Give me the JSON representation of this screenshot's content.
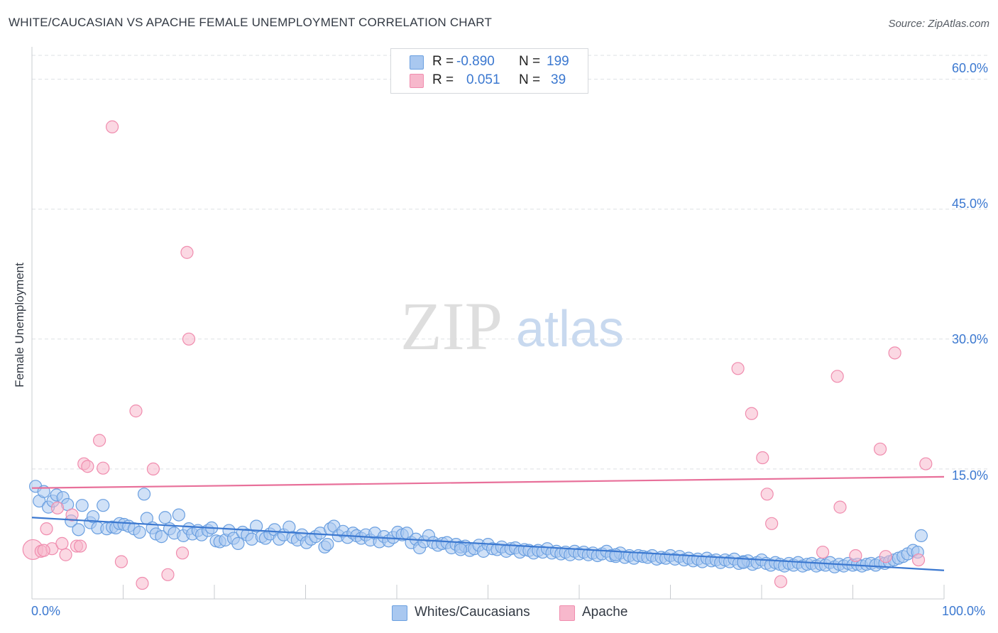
{
  "title": "WHITE/CAUCASIAN VS APACHE FEMALE UNEMPLOYMENT CORRELATION CHART",
  "source": "Source: ZipAtlas.com",
  "watermark": {
    "zip": "ZIP",
    "atlas": "atlas"
  },
  "colors": {
    "blue": "#3b78d0",
    "blue_fill": "#a9c8f0",
    "blue_stroke": "#6a9fe0",
    "pink": "#e8709a",
    "pink_fill": "#f7b8cc",
    "pink_stroke": "#f08cae",
    "grid": "#dde0e4"
  },
  "legend": {
    "rows": [
      {
        "r_label": "R =",
        "r_value": "-0.890",
        "n_label": "N =",
        "n_value": "199"
      },
      {
        "r_label": "R =",
        "r_value": "0.051",
        "n_label": "N =",
        "n_value": "39"
      }
    ]
  },
  "bottom_legend": {
    "series1": "Whites/Caucasians",
    "series2": "Apache"
  },
  "chart_data": {
    "type": "scatter",
    "title": "WHITE/CAUCASIAN VS APACHE FEMALE UNEMPLOYMENT CORRELATION CHART",
    "xlabel": "",
    "ylabel": "Female Unemployment",
    "xlim": [
      0,
      100
    ],
    "ylim": [
      0,
      63
    ],
    "x_tick_labels": {
      "min": "0.0%",
      "max": "100.0%"
    },
    "y_ticks": [
      {
        "value": 15,
        "label": "15.0%"
      },
      {
        "value": 30,
        "label": "30.0%"
      },
      {
        "value": 45,
        "label": "45.0%"
      },
      {
        "value": 60,
        "label": "60.0%"
      }
    ],
    "x_tick_marks": [
      0,
      10,
      20,
      30,
      40,
      50,
      60,
      70,
      80,
      90,
      100
    ],
    "series": [
      {
        "name": "Whites/Caucasians",
        "color": "#3b78d0",
        "trend": {
          "x": [
            0,
            100
          ],
          "y": [
            9.4,
            3.3
          ]
        },
        "points": [
          [
            0.4,
            13.0
          ],
          [
            0.8,
            11.3
          ],
          [
            1.3,
            12.4
          ],
          [
            1.8,
            10.6
          ],
          [
            2.3,
            11.3
          ],
          [
            2.7,
            12.0
          ],
          [
            3.4,
            11.7
          ],
          [
            3.9,
            10.9
          ],
          [
            4.3,
            9.0
          ],
          [
            5.1,
            8.0
          ],
          [
            5.5,
            10.8
          ],
          [
            6.4,
            8.8
          ],
          [
            6.7,
            9.5
          ],
          [
            7.2,
            8.2
          ],
          [
            7.8,
            10.8
          ],
          [
            8.2,
            8.1
          ],
          [
            8.8,
            8.3
          ],
          [
            9.2,
            8.2
          ],
          [
            9.6,
            8.7
          ],
          [
            10.1,
            8.6
          ],
          [
            10.6,
            8.4
          ],
          [
            11.2,
            8.1
          ],
          [
            11.8,
            7.7
          ],
          [
            12.3,
            12.1
          ],
          [
            12.6,
            9.3
          ],
          [
            13.2,
            8.2
          ],
          [
            13.6,
            7.5
          ],
          [
            14.2,
            7.2
          ],
          [
            14.6,
            9.4
          ],
          [
            15.1,
            8.1
          ],
          [
            15.6,
            7.6
          ],
          [
            16.1,
            9.7
          ],
          [
            16.6,
            7.3
          ],
          [
            17.2,
            8.1
          ],
          [
            17.6,
            7.5
          ],
          [
            18.2,
            7.9
          ],
          [
            18.6,
            7.4
          ],
          [
            19.3,
            7.9
          ],
          [
            19.7,
            8.2
          ],
          [
            20.2,
            6.7
          ],
          [
            20.6,
            6.6
          ],
          [
            21.2,
            6.8
          ],
          [
            21.6,
            7.9
          ],
          [
            22.1,
            7.0
          ],
          [
            22.6,
            6.4
          ],
          [
            23.1,
            7.7
          ],
          [
            23.6,
            7.4
          ],
          [
            24.1,
            6.9
          ],
          [
            24.6,
            8.4
          ],
          [
            25.2,
            7.2
          ],
          [
            25.6,
            7.0
          ],
          [
            26.1,
            7.5
          ],
          [
            26.6,
            8.0
          ],
          [
            27.1,
            6.9
          ],
          [
            27.6,
            7.4
          ],
          [
            28.2,
            8.3
          ],
          [
            28.6,
            7.1
          ],
          [
            29.1,
            6.8
          ],
          [
            29.6,
            7.4
          ],
          [
            30.1,
            6.5
          ],
          [
            30.6,
            6.9
          ],
          [
            31.1,
            7.2
          ],
          [
            31.6,
            7.6
          ],
          [
            32.1,
            6.0
          ],
          [
            32.4,
            6.3
          ],
          [
            32.7,
            8.1
          ],
          [
            33.1,
            8.4
          ],
          [
            33.6,
            7.3
          ],
          [
            34.1,
            7.8
          ],
          [
            34.6,
            7.1
          ],
          [
            35.2,
            7.6
          ],
          [
            35.6,
            7.3
          ],
          [
            36.1,
            7.0
          ],
          [
            36.6,
            7.4
          ],
          [
            37.1,
            6.8
          ],
          [
            37.6,
            7.6
          ],
          [
            38.1,
            6.6
          ],
          [
            38.6,
            7.2
          ],
          [
            39.1,
            6.7
          ],
          [
            39.6,
            7.1
          ],
          [
            40.1,
            7.7
          ],
          [
            40.6,
            7.4
          ],
          [
            41.1,
            7.6
          ],
          [
            41.6,
            6.5
          ],
          [
            42.1,
            6.9
          ],
          [
            42.5,
            5.9
          ],
          [
            43.0,
            6.6
          ],
          [
            43.5,
            7.3
          ],
          [
            44.0,
            6.5
          ],
          [
            44.5,
            6.2
          ],
          [
            45.0,
            6.4
          ],
          [
            45.5,
            6.5
          ],
          [
            46.0,
            5.9
          ],
          [
            46.5,
            6.3
          ],
          [
            47.0,
            6.0
          ],
          [
            47.5,
            6.1
          ],
          [
            48.0,
            5.6
          ],
          [
            48.5,
            5.8
          ],
          [
            49.0,
            6.2
          ],
          [
            49.5,
            5.5
          ],
          [
            50.0,
            6.3
          ],
          [
            50.5,
            5.8
          ],
          [
            51.0,
            5.7
          ],
          [
            51.5,
            6.0
          ],
          [
            52.0,
            5.5
          ],
          [
            52.5,
            5.8
          ],
          [
            53.0,
            5.9
          ],
          [
            53.5,
            5.4
          ],
          [
            54.0,
            5.7
          ],
          [
            54.5,
            5.6
          ],
          [
            55.0,
            5.3
          ],
          [
            55.5,
            5.6
          ],
          [
            56.0,
            5.4
          ],
          [
            56.5,
            5.8
          ],
          [
            57.0,
            5.3
          ],
          [
            57.5,
            5.5
          ],
          [
            58.0,
            5.2
          ],
          [
            58.5,
            5.4
          ],
          [
            59.0,
            5.1
          ],
          [
            59.5,
            5.5
          ],
          [
            60.0,
            5.2
          ],
          [
            60.5,
            5.4
          ],
          [
            61.0,
            5.1
          ],
          [
            61.5,
            5.3
          ],
          [
            62.0,
            5.0
          ],
          [
            62.5,
            5.2
          ],
          [
            63.0,
            5.5
          ],
          [
            63.5,
            5.0
          ],
          [
            64.0,
            4.9
          ],
          [
            64.5,
            5.3
          ],
          [
            65.0,
            4.8
          ],
          [
            65.5,
            5.0
          ],
          [
            66.0,
            4.7
          ],
          [
            66.5,
            5.0
          ],
          [
            67.0,
            4.9
          ],
          [
            67.5,
            4.8
          ],
          [
            68.0,
            5.0
          ],
          [
            68.5,
            4.6
          ],
          [
            69.0,
            4.8
          ],
          [
            69.5,
            4.7
          ],
          [
            70.0,
            5.0
          ],
          [
            70.5,
            4.6
          ],
          [
            71.0,
            4.9
          ],
          [
            71.5,
            4.5
          ],
          [
            72.0,
            4.7
          ],
          [
            72.5,
            4.4
          ],
          [
            73.0,
            4.6
          ],
          [
            73.5,
            4.3
          ],
          [
            74.0,
            4.7
          ],
          [
            74.5,
            4.4
          ],
          [
            75.0,
            4.5
          ],
          [
            75.5,
            4.2
          ],
          [
            76.0,
            4.5
          ],
          [
            76.5,
            4.3
          ],
          [
            77.0,
            4.6
          ],
          [
            77.5,
            4.1
          ],
          [
            78.0,
            4.3
          ],
          [
            78.5,
            4.4
          ],
          [
            79.0,
            4.0
          ],
          [
            79.5,
            4.2
          ],
          [
            80.0,
            4.5
          ],
          [
            80.5,
            4.1
          ],
          [
            81.0,
            3.9
          ],
          [
            81.5,
            4.2
          ],
          [
            82.0,
            4.0
          ],
          [
            82.5,
            3.8
          ],
          [
            83.0,
            4.1
          ],
          [
            83.5,
            3.9
          ],
          [
            84.0,
            4.2
          ],
          [
            84.5,
            3.8
          ],
          [
            85.0,
            4.0
          ],
          [
            85.5,
            4.1
          ],
          [
            86.0,
            3.8
          ],
          [
            86.5,
            4.0
          ],
          [
            87.0,
            3.9
          ],
          [
            87.5,
            4.2
          ],
          [
            88.0,
            3.7
          ],
          [
            88.5,
            4.0
          ],
          [
            89.0,
            3.8
          ],
          [
            89.5,
            4.1
          ],
          [
            90.0,
            3.9
          ],
          [
            90.5,
            4.0
          ],
          [
            91.0,
            3.8
          ],
          [
            91.5,
            4.0
          ],
          [
            92.0,
            4.1
          ],
          [
            92.5,
            3.9
          ],
          [
            93.0,
            4.2
          ],
          [
            93.5,
            4.1
          ],
          [
            94.0,
            4.3
          ],
          [
            94.5,
            4.5
          ],
          [
            95.0,
            4.7
          ],
          [
            95.5,
            4.9
          ],
          [
            96.0,
            5.2
          ],
          [
            96.6,
            5.6
          ],
          [
            97.1,
            5.4
          ],
          [
            97.5,
            7.3
          ],
          [
            47.0,
            5.7
          ],
          [
            64.0,
            5.1
          ],
          [
            78.0,
            4.2
          ]
        ]
      },
      {
        "name": "Apache",
        "color": "#e8709a",
        "trend": {
          "x": [
            0,
            100
          ],
          "y": [
            12.8,
            14.1
          ]
        },
        "points": [
          [
            0.1,
            5.7
          ],
          [
            1.0,
            5.5
          ],
          [
            1.6,
            8.1
          ],
          [
            2.2,
            5.8
          ],
          [
            2.8,
            10.5
          ],
          [
            3.3,
            6.4
          ],
          [
            3.7,
            5.1
          ],
          [
            4.4,
            9.7
          ],
          [
            4.9,
            6.1
          ],
          [
            5.3,
            6.1
          ],
          [
            5.7,
            15.6
          ],
          [
            6.1,
            15.3
          ],
          [
            7.4,
            18.3
          ],
          [
            7.8,
            15.1
          ],
          [
            8.8,
            54.5
          ],
          [
            9.8,
            4.3
          ],
          [
            11.4,
            21.7
          ],
          [
            12.1,
            1.8
          ],
          [
            13.3,
            15.0
          ],
          [
            14.9,
            2.8
          ],
          [
            16.5,
            5.3
          ],
          [
            17.0,
            40.0
          ],
          [
            17.2,
            30.0
          ],
          [
            77.4,
            26.6
          ],
          [
            78.9,
            21.4
          ],
          [
            80.1,
            16.3
          ],
          [
            80.6,
            12.1
          ],
          [
            81.1,
            8.7
          ],
          [
            82.1,
            2.0
          ],
          [
            86.7,
            5.4
          ],
          [
            88.3,
            25.7
          ],
          [
            88.6,
            10.6
          ],
          [
            90.3,
            5.0
          ],
          [
            93.0,
            17.3
          ],
          [
            93.6,
            4.9
          ],
          [
            94.6,
            28.4
          ],
          [
            97.2,
            4.5
          ],
          [
            98.0,
            15.6
          ],
          [
            1.3,
            5.6
          ]
        ]
      }
    ]
  }
}
